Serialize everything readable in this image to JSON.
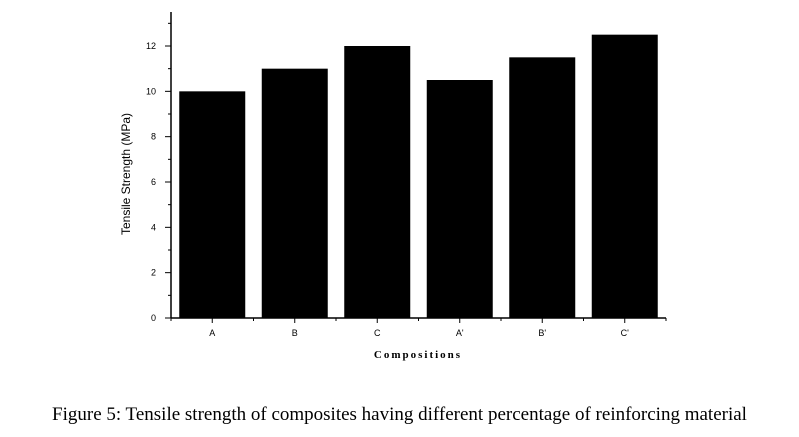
{
  "chart_data": {
    "type": "bar",
    "categories": [
      "A",
      "B",
      "C",
      "A'",
      "B'",
      "C'"
    ],
    "values": [
      10.0,
      11.0,
      12.0,
      10.5,
      11.5,
      12.5
    ],
    "title": "",
    "xlabel": "Compositions",
    "ylabel": "Tensile Strength (MPa)",
    "ylim": [
      0,
      13.5
    ],
    "yticks": [
      0,
      2,
      4,
      6,
      8,
      10,
      12
    ],
    "bar_color": "#000000",
    "grid": false,
    "legend": "none"
  },
  "caption": "Figure 5: Tensile strength of composites having different percentage of reinforcing material"
}
